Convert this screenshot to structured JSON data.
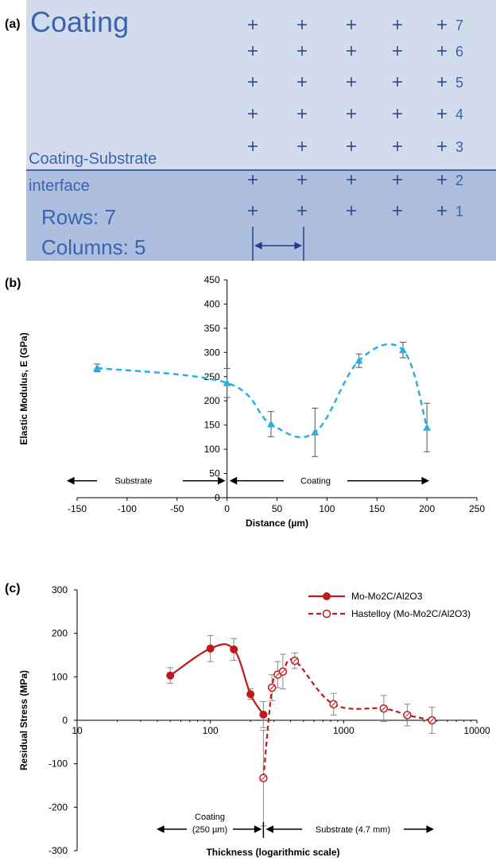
{
  "panels": {
    "a": {
      "label": "(a)",
      "coating_label": "Coating",
      "interface_label_1": "Coating-Substrate",
      "interface_label_2": "interface",
      "rows_text": "Rows: 7",
      "cols_text": "Columns: 5",
      "row_numbers": [
        "7",
        "6",
        "5",
        "4",
        "3",
        "2",
        "1"
      ],
      "colors": {
        "coating_bg": "#d3dcec",
        "substrate_bg": "#adbedf",
        "text": "#3a63b0",
        "mark": "#243f85"
      }
    },
    "b": {
      "label": "(b)"
    },
    "c": {
      "label": "(c)"
    }
  },
  "chart_data": [
    {
      "type": "scatter",
      "panel": "b",
      "x": [
        -130,
        0,
        44,
        88,
        132,
        176,
        200
      ],
      "y": [
        268,
        237,
        152,
        135,
        283,
        305,
        145
      ],
      "yerr": [
        8,
        30,
        26,
        50,
        14,
        16,
        50
      ],
      "xlabel": "Distance (µm)",
      "ylabel": "Elastic Modulus, E (GPa)",
      "xlim": [
        -150,
        250
      ],
      "ylim": [
        0,
        450
      ],
      "xticks": [
        -150,
        -100,
        -50,
        0,
        50,
        100,
        150,
        200,
        250
      ],
      "yticks": [
        0,
        50,
        100,
        150,
        200,
        250,
        300,
        350,
        400,
        450
      ],
      "grid": false,
      "color": "#2ab0e0",
      "marker": "triangle",
      "annotations": {
        "substrate": "Substrate",
        "coating": "Coating"
      }
    },
    {
      "type": "line",
      "panel": "c",
      "xscale": "log",
      "xlabel": "Thickness (logarithmic scale)",
      "ylabel": "Residual Stress (MPa)",
      "xlim": [
        10,
        10000
      ],
      "ylim": [
        -300,
        300
      ],
      "xticks": [
        10,
        100,
        1000,
        10000
      ],
      "yticks": [
        -300,
        -200,
        -100,
        0,
        100,
        200,
        300
      ],
      "grid": false,
      "legend": "top-right",
      "series": [
        {
          "name": "Mo-Mo2C/Al2O3",
          "color": "#c0191c",
          "marker": "filled-circle",
          "x": [
            50,
            100,
            150,
            200,
            250
          ],
          "y": [
            103,
            165,
            163,
            60,
            13
          ],
          "yerr": [
            18,
            30,
            25,
            12,
            30
          ]
        },
        {
          "name": "Hastelloy (Mo-Mo2C/Al2O3)",
          "color": "#c0191c",
          "marker": "open-circle",
          "x": [
            250,
            290,
            320,
            350,
            430,
            840,
            2000,
            3000,
            4600
          ],
          "y": [
            -133,
            75,
            105,
            112,
            137,
            37,
            27,
            12,
            0
          ],
          "yerr": [
            110,
            30,
            30,
            40,
            18,
            25,
            30,
            25,
            30
          ]
        }
      ],
      "annotations": {
        "coating_1": "Coating",
        "coating_2": "(250 µm)",
        "substrate": "Substrate (4.7 mm)"
      }
    }
  ]
}
